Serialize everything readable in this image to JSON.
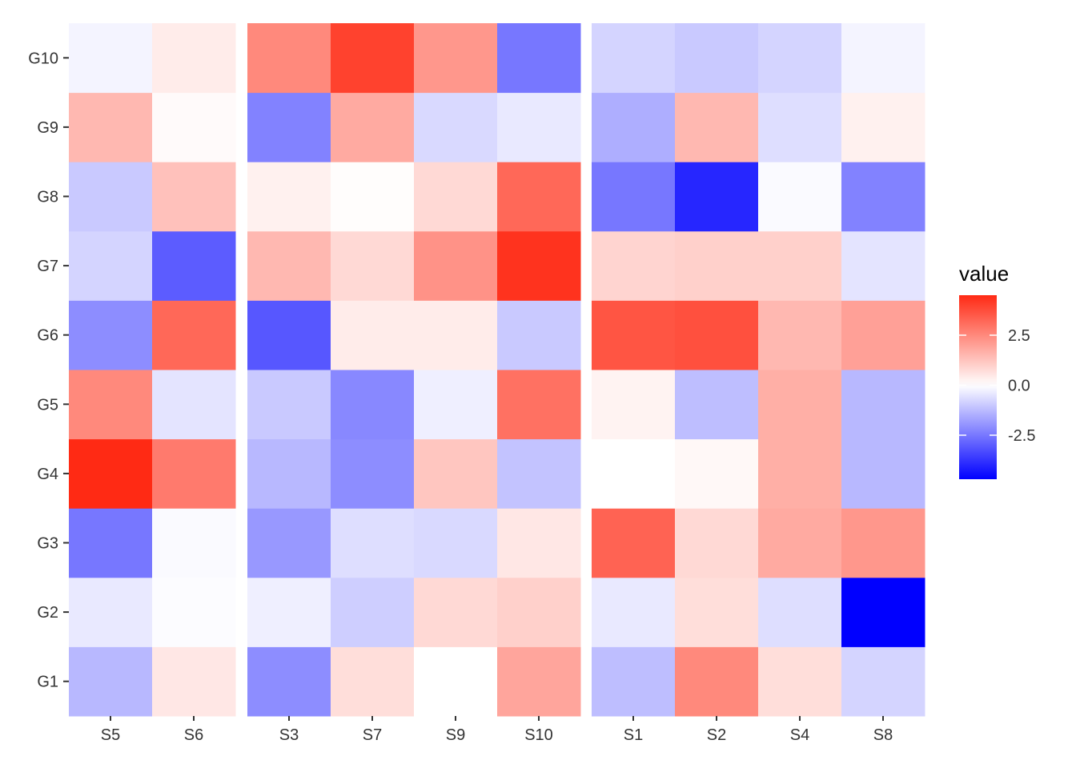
{
  "chart_data": {
    "type": "heatmap",
    "rows": [
      "G1",
      "G2",
      "G3",
      "G4",
      "G5",
      "G6",
      "G7",
      "G8",
      "G9",
      "G10"
    ],
    "panels": [
      {
        "columns": [
          "S5",
          "S6"
        ]
      },
      {
        "columns": [
          "S3",
          "S7",
          "S9",
          "S10"
        ]
      },
      {
        "columns": [
          "S1",
          "S2",
          "S4",
          "S8"
        ]
      }
    ],
    "columns": [
      "S5",
      "S6",
      "S3",
      "S7",
      "S9",
      "S10",
      "S1",
      "S2",
      "S4",
      "S8"
    ],
    "values": {
      "G10": [
        -0.2,
        0.4,
        2.5,
        4.0,
        2.2,
        -2.5,
        -0.8,
        -1.0,
        -0.8,
        -0.2
      ],
      "G9": [
        1.5,
        0.1,
        -2.3,
        1.8,
        -0.7,
        -0.4,
        -1.5,
        1.5,
        -0.6,
        0.3
      ],
      "G8": [
        -1.0,
        1.3,
        0.3,
        0.05,
        0.8,
        3.2,
        -2.5,
        -4.0,
        -0.1,
        -2.3
      ],
      "G7": [
        -0.8,
        -3.0,
        1.5,
        0.8,
        2.3,
        4.3,
        0.9,
        1.0,
        1.0,
        -0.5
      ],
      "G6": [
        -2.1,
        3.2,
        -3.1,
        0.4,
        0.4,
        -1.0,
        3.6,
        3.7,
        1.5,
        2.0
      ],
      "G5": [
        2.5,
        -0.5,
        -1.0,
        -2.2,
        -0.3,
        3.0,
        0.25,
        -1.2,
        1.7,
        -1.3
      ],
      "G4": [
        4.5,
        2.8,
        -1.3,
        -2.1,
        1.2,
        -1.1,
        0.0,
        0.15,
        1.7,
        -1.3
      ],
      "G3": [
        -2.5,
        -0.1,
        -1.9,
        -0.6,
        -0.7,
        0.5,
        3.3,
        0.8,
        1.8,
        2.2
      ],
      "G2": [
        -0.4,
        -0.05,
        -0.3,
        -0.9,
        0.8,
        1.0,
        -0.4,
        0.7,
        -0.6,
        -4.7
      ],
      "G1": [
        -1.3,
        0.5,
        -2.1,
        0.7,
        0.0,
        1.9,
        -1.2,
        2.5,
        0.7,
        -0.8
      ]
    },
    "legend": {
      "title": "value",
      "ticks": [
        2.5,
        0.0,
        -2.5
      ],
      "tick_labels": [
        "2.5",
        "0.0",
        "-2.5"
      ],
      "min": -4.7,
      "max": 4.5,
      "placement": "right"
    },
    "colors": {
      "low": "#0000ff",
      "mid": "#ffffff",
      "high": "#ff2a14"
    }
  }
}
